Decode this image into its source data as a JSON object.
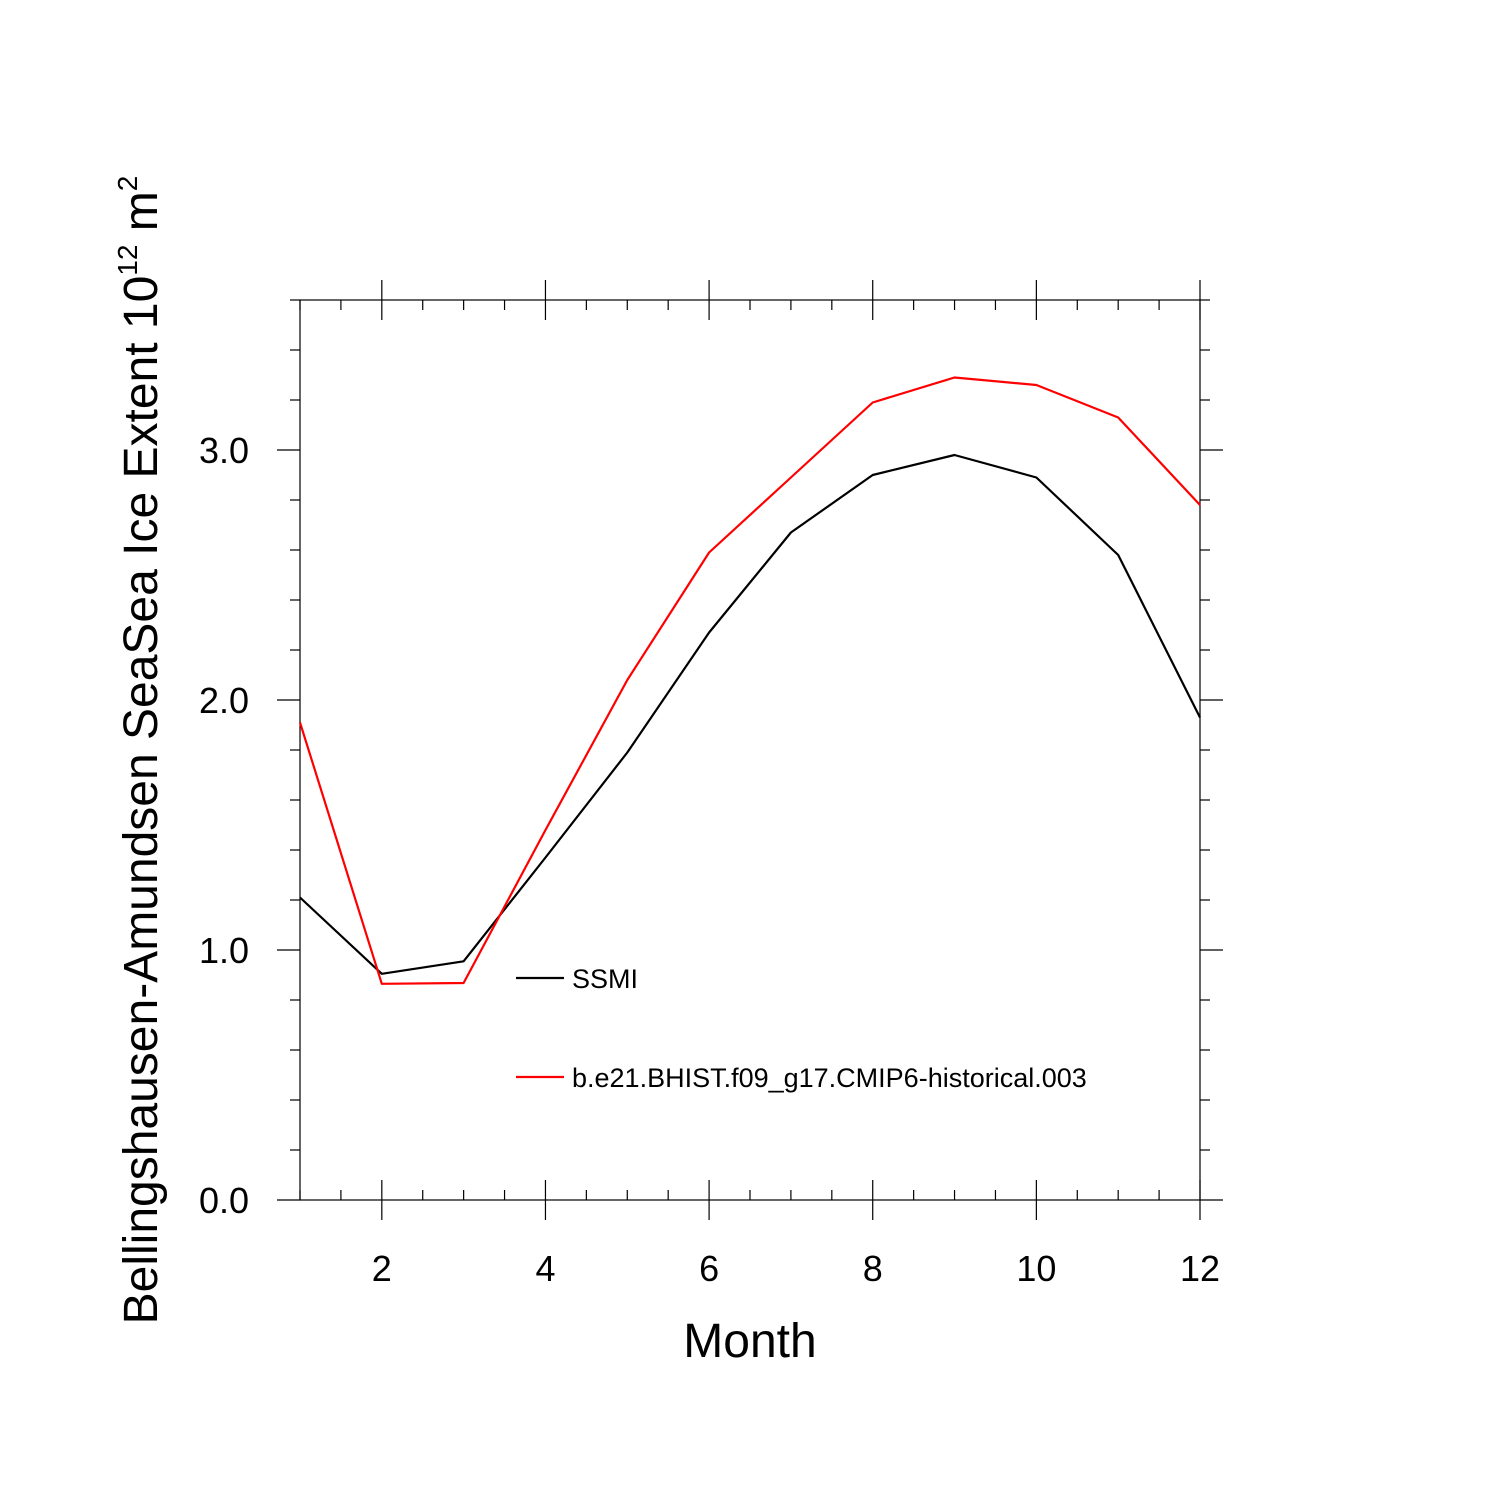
{
  "chart_data": {
    "type": "line",
    "xlabel": "Month",
    "ylabel": "Bellingshausen-Amundsen SeaSea Ice Extent 10",
    "ylabel_exponent": "12",
    "ylabel_unit": "m",
    "ylabel_unit_exponent": "2",
    "xlim": [
      1,
      12
    ],
    "ylim": [
      0,
      3.6
    ],
    "x_ticks": [
      2,
      4,
      6,
      8,
      10,
      12
    ],
    "x_tick_labels": [
      "2",
      "4",
      "6",
      "8",
      "10",
      "12"
    ],
    "y_ticks": [
      0,
      1,
      2,
      3
    ],
    "y_tick_labels": [
      "0.0",
      "1.0",
      "2.0",
      "3.0"
    ],
    "grid": false,
    "legend_position": "lower-center",
    "x": [
      1,
      2,
      3,
      4,
      5,
      6,
      7,
      8,
      9,
      10,
      11,
      12
    ],
    "series": [
      {
        "name": "SSMI",
        "color": "#000000",
        "values": [
          1.21,
          0.905,
          0.955,
          1.37,
          1.79,
          2.27,
          2.67,
          2.9,
          2.98,
          2.89,
          2.58,
          1.93
        ]
      },
      {
        "name": "b.e21.BHIST.f09_g17.CMIP6-historical.003",
        "color": "#ff0000",
        "values": [
          1.91,
          0.865,
          0.868,
          1.48,
          2.08,
          2.59,
          2.89,
          3.19,
          3.29,
          3.26,
          3.13,
          2.78
        ]
      }
    ]
  }
}
